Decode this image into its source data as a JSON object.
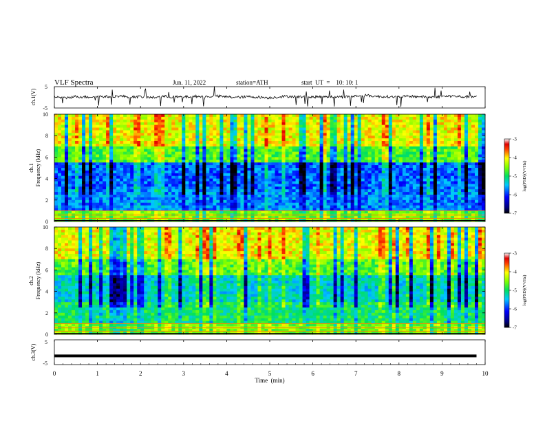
{
  "header": {
    "title": "VLF Spectra",
    "date": "Jun. 11, 2022",
    "station": "station=ATH",
    "start": "start  UT  =    10: 10: 1"
  },
  "chart_data": [
    {
      "type": "line",
      "name": "ch1-waveform",
      "ylabel": "ch.1(V)",
      "ylim": [
        -5,
        5
      ],
      "y_ticks": [
        "5",
        "-5"
      ],
      "x": [
        0,
        0.25,
        0.5,
        0.75,
        1,
        1.25,
        1.5,
        1.75,
        2,
        2.25,
        2.5,
        2.75,
        3,
        3.25,
        3.5,
        3.75,
        4,
        4.25,
        4.5,
        4.75,
        5,
        5.25,
        5.5,
        5.75,
        6,
        6.25,
        6.5,
        6.75,
        7,
        7.25,
        7.5,
        7.75,
        8,
        8.25,
        8.5,
        8.75,
        9,
        9.25,
        9.5,
        9.8
      ],
      "y": [
        0.2,
        -0.3,
        0.4,
        0.1,
        0.5,
        0.3,
        0.6,
        0.2,
        0.3,
        -0.1,
        0.4,
        0.2,
        0.1,
        0.5,
        0.3,
        0.6,
        0.2,
        0.0,
        0.3,
        0.1,
        -0.2,
        0.3,
        0.5,
        0.2,
        0.1,
        0.4,
        0.3,
        0.2,
        0.6,
        0.9,
        0.4,
        0.3,
        0.2,
        0.5,
        0.3,
        0.1,
        0.4,
        0.6,
        0.2,
        0.3
      ]
    },
    {
      "type": "heatmap",
      "name": "ch1-spectrogram",
      "ylabel": "ch.1\nFrequency  (kHz)",
      "xlim": [
        0,
        10
      ],
      "ylim": [
        0,
        10
      ],
      "y_ticks": [
        "0",
        "2",
        "4",
        "6",
        "8",
        "10"
      ],
      "colorbar": {
        "label": "log(PSD)(V²/Hz)",
        "range": [
          -7,
          -3
        ],
        "ticks": [
          "-3",
          "-4",
          "-5",
          "-6",
          "-7"
        ]
      }
    },
    {
      "type": "heatmap",
      "name": "ch2-spectrogram",
      "ylabel": "ch.2\nFrequency  (kHz)",
      "xlim": [
        0,
        10
      ],
      "ylim": [
        0,
        10
      ],
      "y_ticks": [
        "0",
        "2",
        "4",
        "6",
        "8",
        "10"
      ],
      "colorbar": {
        "label": "log(PSD)(V²/Hz)",
        "range": [
          -7,
          -3
        ],
        "ticks": [
          "-3",
          "-4",
          "-5",
          "-6",
          "-7"
        ]
      }
    },
    {
      "type": "line",
      "name": "ch3-waveform",
      "ylabel": "ch.3(V)",
      "ylim": [
        -5,
        5
      ],
      "y_ticks": [
        "5",
        "-5"
      ],
      "x": [
        0,
        9.8
      ],
      "y": [
        -1.5,
        -1.5
      ]
    }
  ],
  "x_axis": {
    "label": "Time  (min)",
    "ticks": [
      "0",
      "1",
      "2",
      "3",
      "4",
      "5",
      "6",
      "7",
      "8",
      "9",
      "10"
    ],
    "range": [
      0,
      10
    ]
  },
  "colors": {
    "axis": "#000000",
    "background": "#ffffff"
  }
}
